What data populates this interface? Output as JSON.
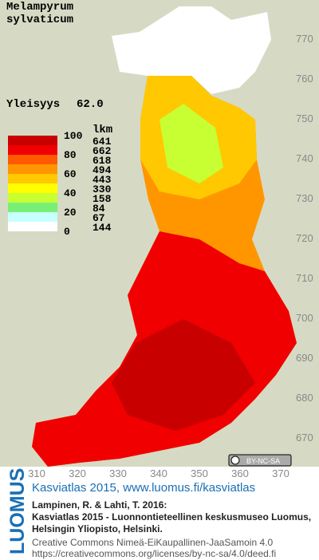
{
  "species": [
    "Melampyrum",
    "sylvaticum"
  ],
  "frequency": {
    "label": "Yleisyys",
    "value": "62.0"
  },
  "legend": {
    "scale_labels": [
      100,
      80,
      60,
      40,
      20,
      0
    ],
    "count_header": "lkm",
    "counts": [
      641,
      662,
      618,
      494,
      443,
      330,
      158,
      84,
      67,
      144
    ],
    "colors": [
      "#c80000",
      "#f00000",
      "#ff5a00",
      "#ff9600",
      "#ffc800",
      "#ffff00",
      "#c8ff32",
      "#78f078",
      "#c8ffff",
      "#ffffff"
    ]
  },
  "y_labels": [
    770,
    760,
    750,
    740,
    730,
    720,
    710,
    700,
    690,
    680,
    670
  ],
  "x_labels": [
    310,
    320,
    330,
    340,
    350,
    360,
    370
  ],
  "license_badge": "BY-NC-SA",
  "footer": {
    "logo": "LUOMUS",
    "link": "Kasviatlas 2015, www.luomus.fi/kasviatlas",
    "citation": [
      "Lampinen, R. & Lahti, T. 2016:",
      "Kasviatlas 2015 - Luonnontieteellinen keskusmuseo Luomus,",
      "Helsingin Yliopisto, Helsinki."
    ],
    "license": [
      "Creative Commons Nimeä-EiKaupallinen-JaaSamoin 4.0",
      "https://creativecommons.org/licenses/by-nc-sa/4.0/deed.fi"
    ]
  }
}
